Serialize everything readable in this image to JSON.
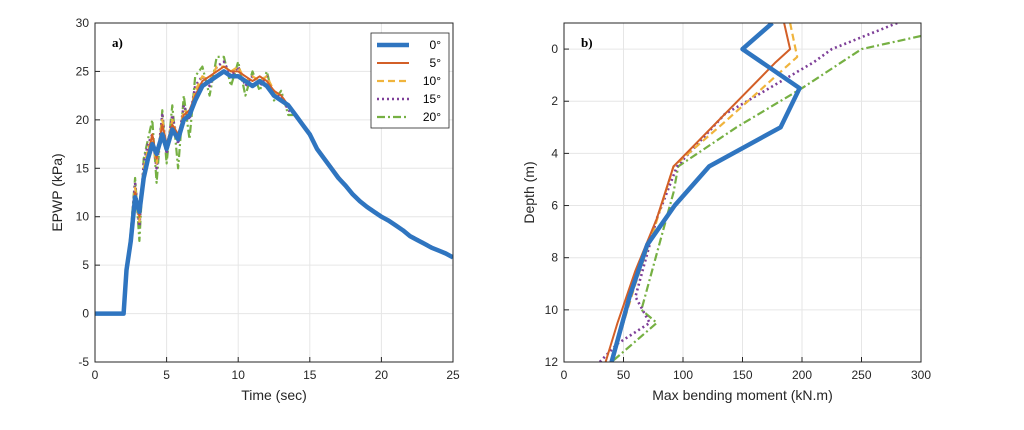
{
  "colors": {
    "0deg": "#2f75c0",
    "5deg": "#d35f27",
    "10deg": "#f0b43c",
    "15deg": "#7e3f98",
    "20deg": "#76b043",
    "grid": "#e6e6e6",
    "axis": "#262626"
  },
  "chart_data": [
    {
      "type": "line",
      "panel_label": "a)",
      "xlabel": "Time (sec)",
      "ylabel": "EPWP (kPa)",
      "xlim": [
        0,
        25
      ],
      "ylim": [
        -5,
        30
      ],
      "xticks": [
        "0",
        "5",
        "10",
        "15",
        "20",
        "25"
      ],
      "yticks": [
        "-5",
        "0",
        "5",
        "10",
        "15",
        "20",
        "25",
        "30"
      ],
      "grid": true,
      "legend": "top-right",
      "series": [
        {
          "name": "0°",
          "color": "#2f75c0",
          "style": "solid-thick",
          "x": [
            0,
            1,
            2,
            2.2,
            2.5,
            2.8,
            3.1,
            3.4,
            3.7,
            4.0,
            4.3,
            4.7,
            5.0,
            5.4,
            5.8,
            6.2,
            6.6,
            7.0,
            7.5,
            8.0,
            8.5,
            9.0,
            9.5,
            10.0,
            10.5,
            11.0,
            11.5,
            12.0,
            12.5,
            13.0,
            13.5,
            14.0,
            14.5,
            15.0,
            15.5,
            16.0,
            16.5,
            17.0,
            17.5,
            18.0,
            18.5,
            19.0,
            19.5,
            20.0,
            20.5,
            21.0,
            21.5,
            22.0,
            22.5,
            23.0,
            23.5,
            24.0,
            24.5,
            25.0
          ],
          "y": [
            0,
            0,
            0,
            4.5,
            7.5,
            12,
            10.5,
            14,
            16,
            17.5,
            16.5,
            18.5,
            17,
            19,
            18,
            20,
            20.5,
            22,
            23.5,
            24,
            24.5,
            25,
            24.5,
            24.5,
            24,
            23.5,
            24,
            23.5,
            22.5,
            22,
            21.5,
            20.5,
            19.5,
            18.5,
            17,
            16,
            15,
            14,
            13.2,
            12.3,
            11.6,
            11,
            10.5,
            10,
            9.6,
            9.1,
            8.6,
            8,
            7.6,
            7.2,
            6.8,
            6.5,
            6.2,
            5.8
          ]
        },
        {
          "name": "5°",
          "color": "#d35f27",
          "style": "solid",
          "x": [
            0,
            1,
            2,
            2.2,
            2.5,
            2.8,
            3.1,
            3.4,
            3.7,
            4.0,
            4.3,
            4.7,
            5.0,
            5.4,
            5.8,
            6.2,
            6.6,
            7.0,
            7.5,
            8.0,
            8.5,
            9.0,
            9.5,
            10.0,
            10.5,
            11.0,
            11.5,
            12.0,
            12.5,
            13.0,
            13.5,
            14.0,
            14.5,
            15.0,
            15.5,
            16.0,
            16.5,
            17.0,
            17.5,
            18.0,
            18.5,
            19.0,
            19.5,
            20.0,
            20.5,
            21.0,
            21.5,
            22.0,
            22.5,
            23.0,
            23.5,
            24.0,
            24.5,
            25.0
          ],
          "y": [
            0,
            0,
            0,
            4.7,
            8,
            12.5,
            10,
            14.5,
            16.5,
            18.5,
            16,
            19.5,
            17.5,
            19.5,
            18.5,
            20.5,
            21,
            22.5,
            24,
            24.5,
            25,
            25.5,
            25,
            25,
            24.5,
            24,
            24.5,
            24,
            23,
            22.5,
            21.5,
            20.5,
            19.5,
            18.5,
            17.2,
            16.2,
            15.2,
            14.2,
            13.3,
            12.4,
            11.7,
            11.1,
            10.6,
            10.1,
            9.7,
            9.2,
            8.7,
            8.1,
            7.7,
            7.3,
            6.9,
            6.6,
            6.3,
            5.9
          ]
        },
        {
          "name": "10°",
          "color": "#f0b43c",
          "style": "dashed",
          "x": [
            0,
            1,
            2,
            2.2,
            2.5,
            2.8,
            3.1,
            3.4,
            3.7,
            4.0,
            4.3,
            4.7,
            5.0,
            5.4,
            5.8,
            6.2,
            6.6,
            7.0,
            7.5,
            8.0,
            8.5,
            9.0,
            9.5,
            10.0,
            10.5,
            11.0,
            11.5,
            12.0,
            12.5,
            13.0,
            13.5,
            14.0,
            14.5,
            15.0,
            15.5,
            16.0,
            16.5,
            17.0,
            17.5,
            18.0,
            18.5,
            19.0,
            19.5,
            20.0,
            20.5,
            21.0,
            21.5,
            22.0,
            22.5,
            23.0,
            23.5,
            24.0,
            24.5,
            25.0
          ],
          "y": [
            0,
            0,
            0,
            4.6,
            7.8,
            13,
            9.5,
            15,
            17,
            18,
            15.5,
            20,
            17,
            20,
            18,
            21,
            20.5,
            23,
            24.5,
            24,
            25.5,
            25.5,
            25,
            25.5,
            24,
            24.5,
            24,
            24.5,
            23,
            22,
            21.5,
            20.5,
            19.5,
            18.5,
            17.1,
            16.1,
            15.1,
            14.1,
            13.2,
            12.4,
            11.7,
            11.1,
            10.6,
            10.1,
            9.6,
            9.2,
            8.7,
            8.1,
            7.7,
            7.3,
            6.9,
            6.5,
            6.2,
            5.9
          ]
        },
        {
          "name": "15°",
          "color": "#7e3f98",
          "style": "dotted",
          "x": [
            0,
            1,
            2,
            2.2,
            2.5,
            2.8,
            3.1,
            3.4,
            3.7,
            4.0,
            4.3,
            4.7,
            5.0,
            5.4,
            5.8,
            6.2,
            6.6,
            7.0,
            7.5,
            8.0,
            8.5,
            9.0,
            9.5,
            10.0,
            10.5,
            11.0,
            11.5,
            12.0,
            12.5,
            13.0,
            13.5,
            14.0,
            14.5,
            15.0,
            15.5,
            16.0,
            16.5,
            17.0,
            17.5,
            18.0,
            18.5,
            19.0,
            19.5,
            20.0,
            20.5,
            21.0,
            21.5,
            22.0,
            22.5,
            23.0,
            23.5,
            24.0,
            24.5,
            25.0
          ],
          "y": [
            0,
            0,
            0,
            4.4,
            8.2,
            13.5,
            9,
            15.5,
            17.5,
            18.5,
            15,
            20.5,
            16.5,
            20.5,
            17.5,
            21.5,
            20,
            23.5,
            24.5,
            23.5,
            25.5,
            26,
            24.5,
            25.5,
            23.5,
            24.5,
            23.5,
            24.5,
            22.5,
            22.5,
            21,
            20.5,
            19.5,
            18.5,
            17.1,
            16.1,
            15.1,
            14.1,
            13.2,
            12.4,
            11.7,
            11.1,
            10.6,
            10.1,
            9.6,
            9.1,
            8.6,
            8.1,
            7.7,
            7.3,
            6.9,
            6.5,
            6.2,
            5.9
          ]
        },
        {
          "name": "20°",
          "color": "#76b043",
          "style": "dashdot",
          "x": [
            0,
            1,
            2,
            2.2,
            2.5,
            2.8,
            3.1,
            3.4,
            3.7,
            4.0,
            4.3,
            4.7,
            5.0,
            5.4,
            5.8,
            6.2,
            6.6,
            7.0,
            7.5,
            8.0,
            8.5,
            9.0,
            9.5,
            10.0,
            10.5,
            11.0,
            11.5,
            12.0,
            12.5,
            13.0,
            13.5,
            14.0,
            14.5,
            15.0,
            15.5,
            16.0,
            16.5,
            17.0,
            17.5,
            18.0,
            18.5,
            19.0,
            19.5,
            20.0,
            20.5,
            21.0,
            21.5,
            22.0,
            22.5,
            23.0,
            23.5,
            24.0,
            24.5,
            25.0
          ],
          "y": [
            0,
            0,
            0,
            4.2,
            8.5,
            14,
            7.5,
            16,
            18,
            20,
            13.5,
            21,
            15.5,
            21.5,
            15,
            22.5,
            18,
            24.5,
            25.5,
            22.5,
            26.5,
            26.5,
            23.5,
            26,
            22.5,
            25,
            23,
            25,
            22,
            23,
            20.5,
            20.5,
            19.5,
            18.5,
            17.1,
            16.1,
            15.1,
            14.1,
            13.2,
            12.4,
            11.7,
            11.1,
            10.6,
            10.1,
            9.6,
            9.1,
            8.6,
            8.1,
            7.7,
            7.3,
            6.9,
            6.5,
            6.2,
            5.9
          ]
        }
      ]
    },
    {
      "type": "line",
      "panel_label": "b)",
      "xlabel": "Max bending moment (kN.m)",
      "ylabel": "Depth (m)",
      "xlim": [
        0,
        300
      ],
      "ylim": [
        12,
        -1
      ],
      "y_reversed": true,
      "xticks": [
        "0",
        "50",
        "100",
        "150",
        "200",
        "250",
        "300"
      ],
      "yticks": [
        "0",
        "2",
        "4",
        "6",
        "8",
        "10",
        "12"
      ],
      "grid": true,
      "series": [
        {
          "name": "0°",
          "color": "#2f75c0",
          "style": "solid-thick",
          "x": [
            175,
            150,
            198,
            182,
            122,
            93,
            70,
            55,
            40
          ],
          "y": [
            -1,
            0,
            1.5,
            3,
            4.5,
            6,
            7.5,
            9.5,
            12
          ]
        },
        {
          "name": "5°",
          "color": "#d35f27",
          "style": "solid",
          "x": [
            185,
            190,
            178,
            92,
            78,
            60,
            45,
            35
          ],
          "y": [
            -1,
            0,
            0.5,
            4.5,
            6.5,
            8.5,
            10.5,
            12
          ]
        },
        {
          "name": "10°",
          "color": "#f0b43c",
          "style": "dashed",
          "x": [
            190,
            196,
            135,
            92,
            75,
            60,
            40
          ],
          "y": [
            -1,
            0.3,
            2.8,
            4.5,
            7,
            9,
            12
          ]
        },
        {
          "name": "15°",
          "color": "#7e3f98",
          "style": "dotted",
          "x": [
            280,
            225,
            210,
            135,
            95,
            78,
            60,
            72,
            45,
            30
          ],
          "y": [
            -1,
            0,
            0.5,
            2.5,
            4.5,
            6.5,
            9.5,
            10.5,
            11.3,
            12
          ]
        },
        {
          "name": "20°",
          "color": "#76b043",
          "style": "dashdot",
          "x": [
            300,
            250,
            200,
            145,
            96,
            92,
            80,
            65,
            78,
            40
          ],
          "y": [
            -0.5,
            0,
            1.5,
            3,
            4.5,
            5.5,
            7.5,
            10,
            10.5,
            12
          ]
        }
      ]
    }
  ]
}
